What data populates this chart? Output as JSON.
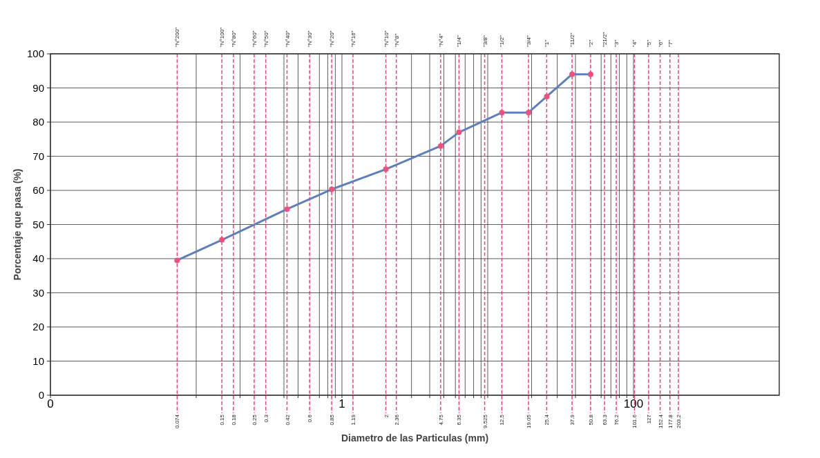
{
  "chart_data": {
    "type": "line",
    "xlabel": "Diametro de las Particulas (mm)",
    "ylabel": "Porcentaje que pasa (%)",
    "log": "x",
    "xlim": [
      0.01,
      1000
    ],
    "ylim": [
      0,
      100
    ],
    "yticks": [
      0,
      10,
      20,
      30,
      40,
      50,
      60,
      70,
      80,
      90,
      100
    ],
    "xticks": [
      {
        "value": 0.01,
        "label": "0"
      },
      {
        "value": 0.1,
        "label": null
      },
      {
        "value": 0.2,
        "label": null
      },
      {
        "value": 0.4,
        "label": null
      },
      {
        "value": 0.5,
        "label": null
      },
      {
        "value": 0.7,
        "label": null
      },
      {
        "value": 0.8,
        "label": null
      },
      {
        "value": 0.9,
        "label": null
      },
      {
        "value": 1,
        "label": "1"
      },
      {
        "value": 3,
        "label": null
      },
      {
        "value": 4,
        "label": null
      },
      {
        "value": 5,
        "label": null
      },
      {
        "value": 6,
        "label": null
      },
      {
        "value": 7,
        "label": null
      },
      {
        "value": 8,
        "label": null
      },
      {
        "value": 9,
        "label": null
      },
      {
        "value": 10,
        "label": null
      },
      {
        "value": 20,
        "label": null
      },
      {
        "value": 30,
        "label": null
      },
      {
        "value": 40,
        "label": null
      },
      {
        "value": 60,
        "label": null
      },
      {
        "value": 70,
        "label": null
      },
      {
        "value": 80,
        "label": null
      },
      {
        "value": 90,
        "label": null
      },
      {
        "value": 100,
        "label": "100"
      }
    ],
    "grid": true,
    "marker": "circle",
    "line_style": "solid",
    "series": [
      {
        "color": "#5b7fc0",
        "x": [
          0.074,
          0.15,
          0.42,
          0.85,
          2,
          4.75,
          6.35,
          12.5,
          19.05,
          25.4,
          37.9,
          50.8
        ],
        "values": [
          39.5,
          45.5,
          54.5,
          60.3,
          66.2,
          73,
          77,
          82.8,
          82.8,
          87.5,
          94,
          94
        ]
      }
    ],
    "annotations": [
      "\"N°200\"",
      "\"N°100\"",
      "\"N°80\"",
      "\"N°60\"",
      "\"N°50\"",
      "\"N°40\"",
      "\"N°30\"",
      "\"N°20\"",
      "\"N°16\"",
      "\"N°10\"",
      "\"N°8\"",
      "\"N°4\"",
      "\"1/4\"",
      "\"3/8\"",
      "\"1/2\"",
      "\"3/4\"",
      "\"1\"",
      "\"11/2\"",
      "\"2\"",
      "\"21/2\"",
      "\"3\"",
      "\"4\"",
      "\"5\"",
      "\"6\"",
      "\"7\""
    ],
    "ref_lines": [
      {
        "axis": "x",
        "value": 0.074,
        "label": "0.074",
        "color": "#f0407a",
        "line_style": "dashed"
      },
      {
        "axis": "x",
        "value": 0.15,
        "label": "0.15",
        "color": "#f0407a",
        "line_style": "dashed"
      },
      {
        "axis": "x",
        "value": 0.18,
        "label": "0.18",
        "color": "#f0407a",
        "line_style": "dashed"
      },
      {
        "axis": "x",
        "value": 0.25,
        "label": "0.25",
        "color": "#f0407a",
        "line_style": "dashed"
      },
      {
        "axis": "x",
        "value": 0.3,
        "label": "0.3",
        "color": "#f0407a",
        "line_style": "dashed"
      },
      {
        "axis": "x",
        "value": 0.42,
        "label": "0.42",
        "color": "#f0407a",
        "line_style": "dashed"
      },
      {
        "axis": "x",
        "value": 0.6,
        "label": "0.6",
        "color": "#f0407a",
        "line_style": "dashed"
      },
      {
        "axis": "x",
        "value": 0.85,
        "label": "0.85",
        "color": "#f0407a",
        "line_style": "dashed"
      },
      {
        "axis": "x",
        "value": 1.19,
        "label": "1.19",
        "color": "#f0407a",
        "line_style": "dashed"
      },
      {
        "axis": "x",
        "value": 2,
        "label": "2",
        "color": "#f0407a",
        "line_style": "dashed"
      },
      {
        "axis": "x",
        "value": 2.36,
        "label": "2.36",
        "color": "#f0407a",
        "line_style": "dashed"
      },
      {
        "axis": "x",
        "value": 4.75,
        "label": "4.75",
        "color": "#f0407a",
        "line_style": "dashed"
      },
      {
        "axis": "x",
        "value": 6.35,
        "label": "6.35",
        "color": "#f0407a",
        "line_style": "dashed"
      },
      {
        "axis": "x",
        "value": 9.525,
        "label": "9.525",
        "color": "#f0407a",
        "line_style": "dashed"
      },
      {
        "axis": "x",
        "value": 12.5,
        "label": "12.5",
        "color": "#f0407a",
        "line_style": "dashed"
      },
      {
        "axis": "x",
        "value": 19.05,
        "label": "19.05",
        "color": "#f0407a",
        "line_style": "dashed"
      },
      {
        "axis": "x",
        "value": 25.4,
        "label": "25.4",
        "color": "#f0407a",
        "line_style": "dashed"
      },
      {
        "axis": "x",
        "value": 37.9,
        "label": "37.9",
        "color": "#f0407a",
        "line_style": "dashed"
      },
      {
        "axis": "x",
        "value": 50.8,
        "label": "50.8",
        "color": "#f0407a",
        "line_style": "dashed"
      },
      {
        "axis": "x",
        "value": 63.3,
        "label": "63.3",
        "color": "#f0407a",
        "line_style": "dashed"
      },
      {
        "axis": "x",
        "value": 76.2,
        "label": "76.2",
        "color": "#f0407a",
        "line_style": "dashed"
      },
      {
        "axis": "x",
        "value": 101.6,
        "label": "101.6",
        "color": "#f0407a",
        "line_style": "dashed"
      },
      {
        "axis": "x",
        "value": 127,
        "label": "127",
        "color": "#f0407a",
        "line_style": "dashed"
      },
      {
        "axis": "x",
        "value": 152.4,
        "label": "152.4",
        "color": "#f0407a",
        "line_style": "dashed"
      },
      {
        "axis": "x",
        "value": 177.8,
        "label": "177.8",
        "color": "#f0407a",
        "line_style": "dashed"
      },
      {
        "axis": "x",
        "value": 203.2,
        "label": "203.2",
        "color": "#f0407a",
        "line_style": "dashed"
      }
    ]
  }
}
